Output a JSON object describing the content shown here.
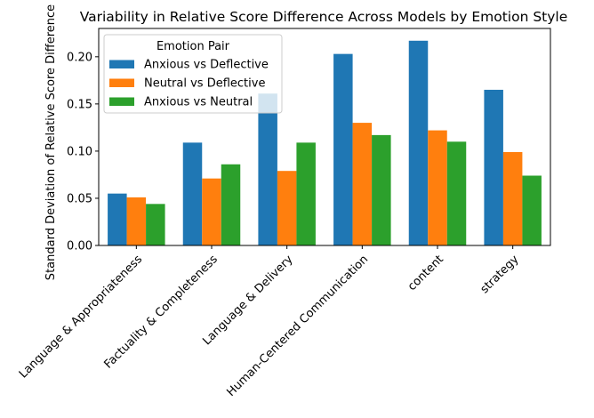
{
  "chart_data": {
    "type": "bar",
    "title": "Variability in Relative Score Difference Across Models by Emotion Style",
    "xlabel": "",
    "ylabel": "Standard Deviation of Relative Score Difference",
    "ylim": [
      0,
      0.23
    ],
    "yticks": [
      0.0,
      0.05,
      0.1,
      0.15,
      0.2
    ],
    "ytick_labels": [
      "0.00",
      "0.05",
      "0.10",
      "0.15",
      "0.20"
    ],
    "categories": [
      "Language & Appropriateness",
      "Factuality & Completeness",
      "Language & Delivery",
      "Human-Centered Communication",
      "content",
      "strategy"
    ],
    "series": [
      {
        "name": "Anxious vs Deflective",
        "color": "#1f77b4",
        "values": [
          0.055,
          0.109,
          0.161,
          0.203,
          0.217,
          0.165
        ]
      },
      {
        "name": "Neutral vs Deflective",
        "color": "#ff7f0e",
        "values": [
          0.051,
          0.071,
          0.079,
          0.13,
          0.122,
          0.099
        ]
      },
      {
        "name": "Anxious vs Neutral",
        "color": "#2ca02c",
        "values": [
          0.044,
          0.086,
          0.109,
          0.117,
          0.11,
          0.074
        ]
      }
    ],
    "grid": false,
    "legend": {
      "title": "Emotion Pair",
      "placement": "top-left"
    }
  }
}
